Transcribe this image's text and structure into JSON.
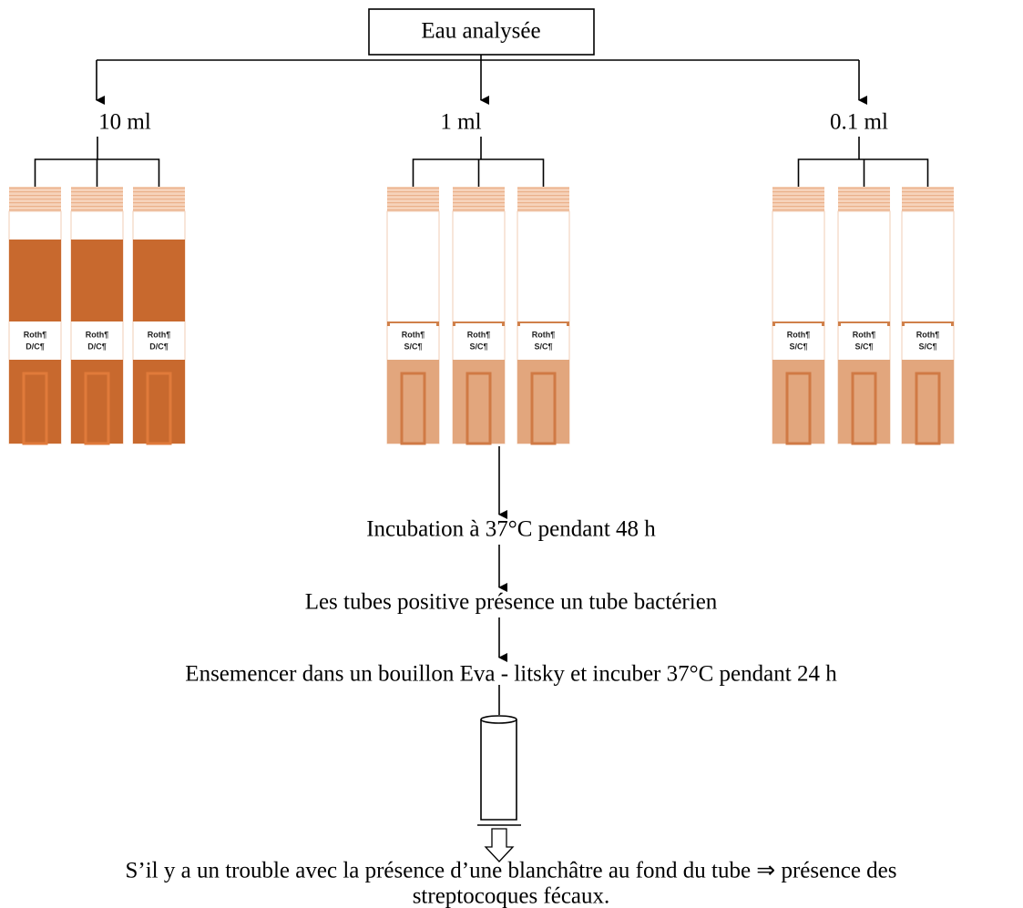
{
  "root": {
    "label": "Eau analysée"
  },
  "groups": [
    {
      "volume": "10 ml",
      "tubes": [
        {
          "line1": "Roth¶",
          "line2": "D/C¶"
        },
        {
          "line1": "Roth¶",
          "line2": "D/C¶"
        },
        {
          "line1": "Roth¶",
          "line2": "D/C¶"
        }
      ]
    },
    {
      "volume": "1 ml",
      "tubes": [
        {
          "line1": "Roth¶",
          "line2": "S/C¶"
        },
        {
          "line1": "Roth¶",
          "line2": "S/C¶"
        },
        {
          "line1": "Roth¶",
          "line2": "S/C¶"
        }
      ]
    },
    {
      "volume": "0.1 ml",
      "tubes": [
        {
          "line1": "Roth¶",
          "line2": "S/C¶"
        },
        {
          "line1": "Roth¶",
          "line2": "S/C¶"
        },
        {
          "line1": "Roth¶",
          "line2": "S/C¶"
        }
      ]
    }
  ],
  "steps": [
    "Incubation à 37°C pendant 48 h",
    "Les tubes positive présence un tube bactérien",
    "Ensemencer dans un bouillon Eva - litsky et incuber 37°C pendant 24 h"
  ],
  "result": {
    "line1": "S’il y a un trouble avec la présence d’une blanchâtre au fond du tube ⇒ présence des",
    "line2": "streptocoques fécaux."
  }
}
